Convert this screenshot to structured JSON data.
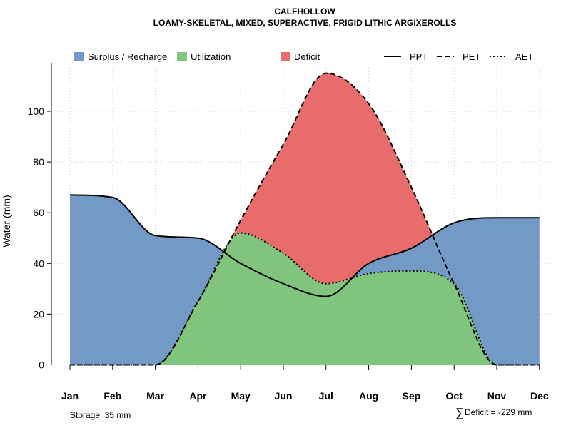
{
  "chart_data": {
    "type": "area",
    "title": "CALFHOLLOW",
    "subtitle": "LOAMY-SKELETAL, MIXED, SUPERACTIVE, FRIGID LITHIC ARGIXEROLLS",
    "ylabel": "Water (mm)",
    "xlabel": "",
    "ylim": [
      0,
      118
    ],
    "yticks": [
      0,
      20,
      40,
      60,
      80,
      100
    ],
    "grid": true,
    "categories": [
      "Jan",
      "Feb",
      "Mar",
      "Apr",
      "May",
      "Jun",
      "Jul",
      "Aug",
      "Sep",
      "Oct",
      "Nov",
      "Dec"
    ],
    "series": [
      {
        "name": "PPT",
        "line": "solid",
        "values": [
          67,
          66,
          51,
          50,
          40,
          32,
          27,
          40,
          46,
          56,
          58,
          58
        ]
      },
      {
        "name": "PET",
        "line": "dashed",
        "values": [
          0,
          0,
          0,
          25,
          57,
          87,
          115,
          103,
          70,
          32,
          0,
          0
        ]
      },
      {
        "name": "AET",
        "line": "dotted",
        "values": [
          0,
          0,
          0,
          25,
          52,
          44,
          32,
          36,
          37,
          32,
          0,
          0
        ]
      }
    ],
    "fills": [
      {
        "name": "Surplus / Recharge",
        "color": "#7399C6"
      },
      {
        "name": "Utilization",
        "color": "#80C47D"
      },
      {
        "name": "Deficit",
        "color": "#E96C6C"
      }
    ],
    "lines": [
      {
        "name": "PPT",
        "style": "solid"
      },
      {
        "name": "PET",
        "style": "dashed"
      },
      {
        "name": "AET",
        "style": "dotted"
      }
    ],
    "legend_position": "top",
    "annotations": {
      "storage": "Storage: 35 mm",
      "deficit_symbol": "∑",
      "deficit": "Deficit = -229 mm"
    }
  }
}
